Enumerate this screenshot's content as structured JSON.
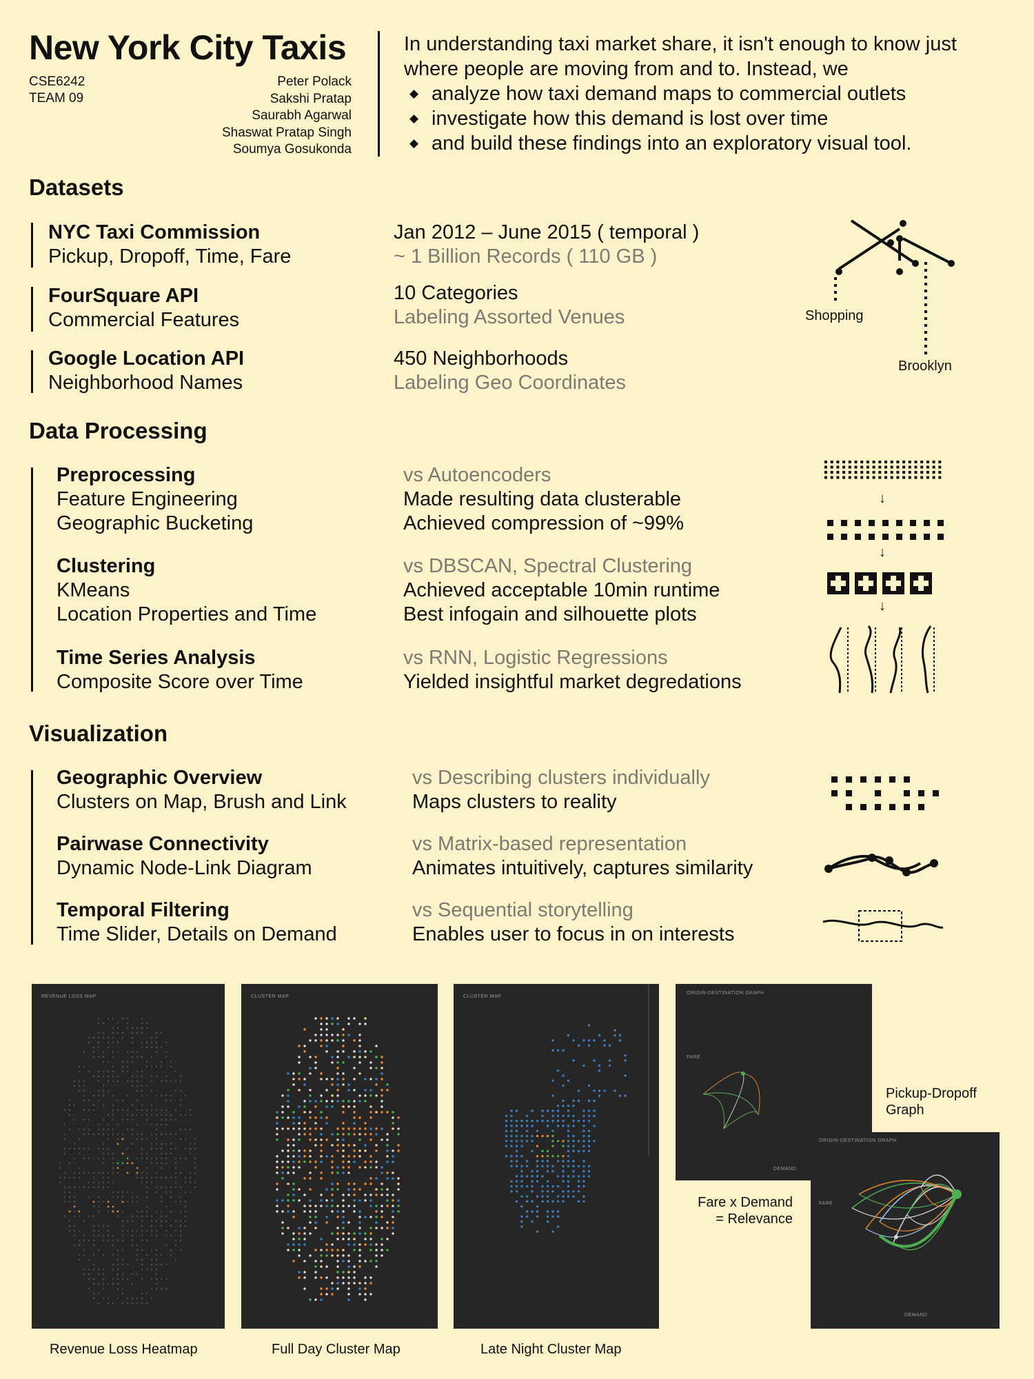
{
  "header": {
    "title": "New York City Taxis",
    "course": "CSE6242",
    "team": "TEAM 09",
    "authors": [
      "Peter Polack",
      "Sakshi Pratap",
      "Saurabh Agarwal",
      "Shaswat Pratap Singh",
      "Soumya Gosukonda"
    ],
    "intro": "In understanding taxi market share, it isn't enough to know just where people are moving from and to. Instead, we",
    "bullets": [
      "analyze how taxi demand maps to commercial outlets",
      "investigate how this demand is lost over time",
      "and build these findings into an exploratory visual tool."
    ]
  },
  "datasets": {
    "heading": "Datasets",
    "items": [
      {
        "name": "NYC Taxi Commission",
        "desc": "Pickup, Dropoff, Time, Fare",
        "stat": "Jan 2012 – June 2015 ( temporal )",
        "note": "~ 1 Billion Records ( 110 GB )"
      },
      {
        "name": "FourSquare API",
        "desc": "Commercial Features",
        "stat": "10 Categories",
        "note": "Labeling Assorted Venues"
      },
      {
        "name": "Google Location API",
        "desc": "Neighborhood Names",
        "stat": "450 Neighborhoods",
        "note": "Labeling Geo Coordinates"
      }
    ],
    "diagram_labels": {
      "shopping": "Shopping",
      "brooklyn": "Brooklyn"
    }
  },
  "processing": {
    "heading": "Data Processing",
    "items": [
      {
        "name": "Preprocessing",
        "lines": [
          "Feature Engineering",
          "Geographic Bucketing"
        ],
        "vs": "vs Autoencoders",
        "results": [
          "Made resulting data clusterable",
          "Achieved compression of ~99%"
        ]
      },
      {
        "name": "Clustering",
        "lines": [
          "KMeans",
          "Location Properties and Time"
        ],
        "vs": "vs DBSCAN, Spectral Clustering",
        "results": [
          "Achieved acceptable 10min runtime",
          "Best infogain and silhouette plots"
        ]
      },
      {
        "name": "Time Series Analysis",
        "lines": [
          "Composite Score over Time"
        ],
        "vs": "vs RNN, Logistic Regressions",
        "results": [
          "Yielded insightful market degredations"
        ]
      }
    ],
    "arrow": "↓"
  },
  "visualization": {
    "heading": "Visualization",
    "items": [
      {
        "name": "Geographic Overview",
        "desc": "Clusters on Map, Brush and Link",
        "vs": "vs Describing clusters individually",
        "result": "Maps clusters to reality"
      },
      {
        "name": "Pairwase Connectivity",
        "desc": "Dynamic Node-Link Diagram",
        "vs": "vs Matrix-based representation",
        "result": "Animates intuitively, captures similarity"
      },
      {
        "name": "Temporal Filtering",
        "desc": "Time Slider, Details on Demand",
        "vs": "vs Sequential storytelling",
        "result": "Enables user to focus in on interests"
      }
    ]
  },
  "screenshots": {
    "heatmap": {
      "label": "REVENUE LOSS MAP",
      "caption": "Revenue Loss Heatmap"
    },
    "fullday": {
      "label": "CLUSTER MAP",
      "caption": "Full Day Cluster Map"
    },
    "night": {
      "label": "CLUSTER MAP",
      "caption": "Late Night Cluster Map"
    },
    "graph1": {
      "label": "ORIGIN-DESTINATION GRAPH",
      "axis_y": "FARE",
      "axis_x": "DEMAND"
    },
    "graph2": {
      "label": "ORIGIN-DESTINATION GRAPH",
      "axis_y": "FARE",
      "axis_x": "DEMAND"
    },
    "graph_caption": [
      "Pickup-Dropoff",
      "Graph"
    ],
    "relevance_caption": [
      "Fare x Demand",
      "= Relevance"
    ]
  },
  "colors": {
    "background": "#fcf3ca",
    "panel": "#262626",
    "orange": "#e8862a",
    "green": "#4caf50",
    "blue": "#3a7fc0"
  }
}
